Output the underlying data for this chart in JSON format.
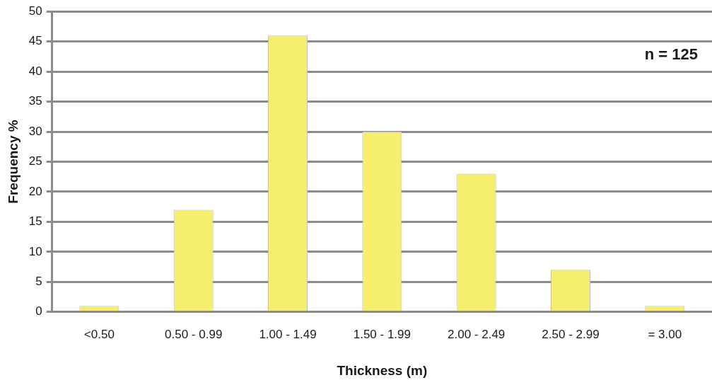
{
  "chart_data": {
    "type": "bar",
    "xlabel": "Thickness (m)",
    "ylabel": "Frequency %",
    "categories": [
      "<0.50",
      "0.50 - 0.99",
      "1.00 - 1.49",
      "1.50 - 1.99",
      "2.00 - 2.49",
      "2.50 - 2.99",
      "= 3.00"
    ],
    "values": [
      1,
      17,
      46,
      30,
      23,
      7,
      1
    ],
    "color": "#f5ee6e",
    "ylim": [
      0,
      50
    ],
    "yticks": [
      0,
      5,
      10,
      15,
      20,
      25,
      30,
      35,
      40,
      45,
      50
    ],
    "grid": "y",
    "legend": false,
    "annotations": [
      "n = 125"
    ]
  }
}
